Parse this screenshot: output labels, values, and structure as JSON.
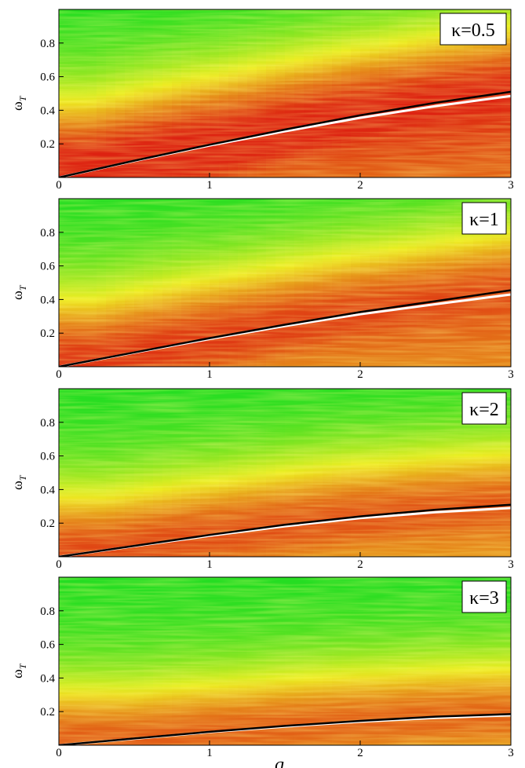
{
  "chart_data": {
    "type": "heatmap",
    "xlabel": "q",
    "ylabel_base": "ω",
    "ylabel_sub": "T",
    "xlim": [
      0,
      3
    ],
    "ylim": [
      0,
      1
    ],
    "x_ticks": [
      0,
      1,
      2,
      3
    ],
    "x_tick_labels": [
      "0",
      "1",
      "2",
      "3"
    ],
    "y_ticks": [
      0.2,
      0.4,
      0.6,
      0.8
    ],
    "y_tick_labels": [
      "0.2",
      "0.4",
      "0.6",
      "0.8"
    ],
    "colors": {
      "low": "#22dd22",
      "mid": "#eeee22",
      "high": "#dd2211",
      "curve_dark": "#000000",
      "curve_light": "#ffffff"
    },
    "panels": [
      {
        "label": "κ=0.5",
        "kappa": 0.5,
        "curve_black": {
          "q": [
            0,
            0.5,
            1,
            1.5,
            2,
            2.5,
            3
          ],
          "omega": [
            0,
            0.1,
            0.195,
            0.285,
            0.37,
            0.445,
            0.51
          ]
        },
        "curve_white": {
          "q": [
            0,
            0.5,
            1,
            1.5,
            2,
            2.5,
            3
          ],
          "omega": [
            0,
            0.098,
            0.19,
            0.275,
            0.355,
            0.425,
            0.485
          ]
        }
      },
      {
        "label": "κ=1",
        "kappa": 1,
        "curve_black": {
          "q": [
            0,
            0.5,
            1,
            1.5,
            2,
            2.5,
            3
          ],
          "omega": [
            0,
            0.085,
            0.17,
            0.25,
            0.325,
            0.39,
            0.455
          ]
        },
        "curve_white": {
          "q": [
            0,
            0.5,
            1,
            1.5,
            2,
            2.5,
            3
          ],
          "omega": [
            0,
            0.083,
            0.165,
            0.242,
            0.312,
            0.372,
            0.43
          ]
        }
      },
      {
        "label": "κ=2",
        "kappa": 2,
        "curve_black": {
          "q": [
            0,
            0.5,
            1,
            1.5,
            2,
            2.5,
            3
          ],
          "omega": [
            0,
            0.065,
            0.13,
            0.19,
            0.24,
            0.28,
            0.31
          ]
        },
        "curve_white": {
          "q": [
            0,
            0.5,
            1,
            1.5,
            2,
            2.5,
            3
          ],
          "omega": [
            0,
            0.063,
            0.125,
            0.182,
            0.23,
            0.265,
            0.29
          ]
        }
      },
      {
        "label": "κ=3",
        "kappa": 3,
        "curve_black": {
          "q": [
            0,
            0.5,
            1,
            1.5,
            2,
            2.5,
            3
          ],
          "omega": [
            0,
            0.04,
            0.08,
            0.115,
            0.145,
            0.17,
            0.185
          ]
        },
        "curve_white": {
          "q": [
            0,
            0.5,
            1,
            1.5,
            2,
            2.5,
            3
          ],
          "omega": [
            0,
            0.039,
            0.078,
            0.111,
            0.14,
            0.163,
            0.178
          ]
        }
      }
    ]
  }
}
